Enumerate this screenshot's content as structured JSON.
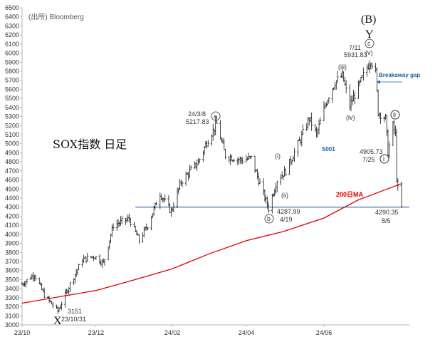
{
  "chart_data": {
    "type": "ohlc",
    "source": "(出所)  Bloomberg",
    "title": "SOX指数 日足",
    "ylim": [
      3000,
      6500
    ],
    "yticks": [
      3000,
      3100,
      3200,
      3300,
      3400,
      3500,
      3600,
      3700,
      3800,
      3900,
      4000,
      4100,
      4200,
      4300,
      4400,
      4500,
      4600,
      4700,
      4800,
      4900,
      5000,
      5100,
      5200,
      5300,
      5400,
      5500,
      5600,
      5700,
      5800,
      5900,
      6000,
      6100,
      6200,
      6300,
      6400,
      6500
    ],
    "xticks": [
      {
        "label": "23/10",
        "date": "2023-10-02"
      },
      {
        "label": "23/12",
        "date": "2023-12-01"
      },
      {
        "label": "24/02",
        "date": "2024-02-01"
      },
      {
        "label": "24/04",
        "date": "2024-04-01"
      },
      {
        "label": "24/06",
        "date": "2024-06-03"
      }
    ],
    "price_key_points": [
      {
        "date": "2023-10-02",
        "value": 3450
      },
      {
        "date": "2023-10-12",
        "value": 3560
      },
      {
        "date": "2023-10-20",
        "value": 3330
      },
      {
        "date": "2023-10-31",
        "value": 3151
      },
      {
        "date": "2023-11-10",
        "value": 3450
      },
      {
        "date": "2023-11-20",
        "value": 3720
      },
      {
        "date": "2023-11-30",
        "value": 3760
      },
      {
        "date": "2023-12-07",
        "value": 3680
      },
      {
        "date": "2023-12-15",
        "value": 4100
      },
      {
        "date": "2023-12-28",
        "value": 4170
      },
      {
        "date": "2024-01-05",
        "value": 3930
      },
      {
        "date": "2024-01-12",
        "value": 4100
      },
      {
        "date": "2024-01-22",
        "value": 4450
      },
      {
        "date": "2024-01-31",
        "value": 4250
      },
      {
        "date": "2024-02-08",
        "value": 4580
      },
      {
        "date": "2024-02-22",
        "value": 4800
      },
      {
        "date": "2024-03-01",
        "value": 5050
      },
      {
        "date": "2024-03-08",
        "value": 5217.83
      },
      {
        "date": "2024-03-15",
        "value": 4870
      },
      {
        "date": "2024-03-28",
        "value": 4820
      },
      {
        "date": "2024-04-05",
        "value": 4840
      },
      {
        "date": "2024-04-12",
        "value": 4560
      },
      {
        "date": "2024-04-19",
        "value": 4287.99
      },
      {
        "date": "2024-04-26",
        "value": 4600
      },
      {
        "date": "2024-05-03",
        "value": 4700
      },
      {
        "date": "2024-05-15",
        "value": 5050
      },
      {
        "date": "2024-05-22",
        "value": 5280
      },
      {
        "date": "2024-05-28",
        "value": 5100
      },
      {
        "date": "2024-06-05",
        "value": 5470
      },
      {
        "date": "2024-06-12",
        "value": 5680
      },
      {
        "date": "2024-06-18",
        "value": 5750
      },
      {
        "date": "2024-06-24",
        "value": 5420
      },
      {
        "date": "2024-07-01",
        "value": 5630
      },
      {
        "date": "2024-07-11",
        "value": 5931.83
      },
      {
        "date": "2024-07-15",
        "value": 5780
      },
      {
        "date": "2024-07-17",
        "value": 5350
      },
      {
        "date": "2024-07-23",
        "value": 5280
      },
      {
        "date": "2024-07-25",
        "value": 4905.73
      },
      {
        "date": "2024-07-29",
        "value": 5200
      },
      {
        "date": "2024-07-31",
        "value": 5100
      },
      {
        "date": "2024-08-01",
        "value": 4620
      },
      {
        "date": "2024-08-02",
        "value": 4500
      },
      {
        "date": "2024-08-05",
        "value": 4290.35
      }
    ],
    "ma200": {
      "name": "200日MA",
      "color": "#e00000",
      "points": [
        {
          "date": "2023-10-02",
          "value": 3240
        },
        {
          "date": "2023-11-01",
          "value": 3310
        },
        {
          "date": "2023-12-01",
          "value": 3380
        },
        {
          "date": "2024-01-02",
          "value": 3500
        },
        {
          "date": "2024-02-01",
          "value": 3620
        },
        {
          "date": "2024-03-01",
          "value": 3780
        },
        {
          "date": "2024-04-01",
          "value": 3930
        },
        {
          "date": "2024-05-01",
          "value": 4030
        },
        {
          "date": "2024-06-03",
          "value": 4180
        },
        {
          "date": "2024-07-01",
          "value": 4380
        },
        {
          "date": "2024-08-05",
          "value": 4560
        }
      ]
    },
    "hline": {
      "value": 4300,
      "color": "#1f4e9c"
    },
    "annotations": {
      "wave_B": "(B)",
      "wave_Y": "Y",
      "wave_c": "c",
      "wave_v": "(v)",
      "wave_iii": "(iii)",
      "wave_iv": "(iv)",
      "wave_i": "(i)",
      "wave_ii": "(ii)",
      "wave_a": "a",
      "wave_b": "b",
      "wave_X": "X",
      "circ_ii": "ii",
      "circ_i": "i",
      "breakaway": "Breakaway gap",
      "s001": "S001",
      "ma_label": "200日MA",
      "high_date": "7/11",
      "high_value": "5931.83",
      "a_date": "24/3/8",
      "a_value": "5217.83",
      "b_value": "4287.99",
      "b_date": "4/19",
      "low_value": "3151",
      "low_date": "23/10/31",
      "jul25_value": "4905.73",
      "jul25_date": "7/25",
      "aug5_value": "4290.35",
      "aug5_date": "8/5"
    }
  }
}
